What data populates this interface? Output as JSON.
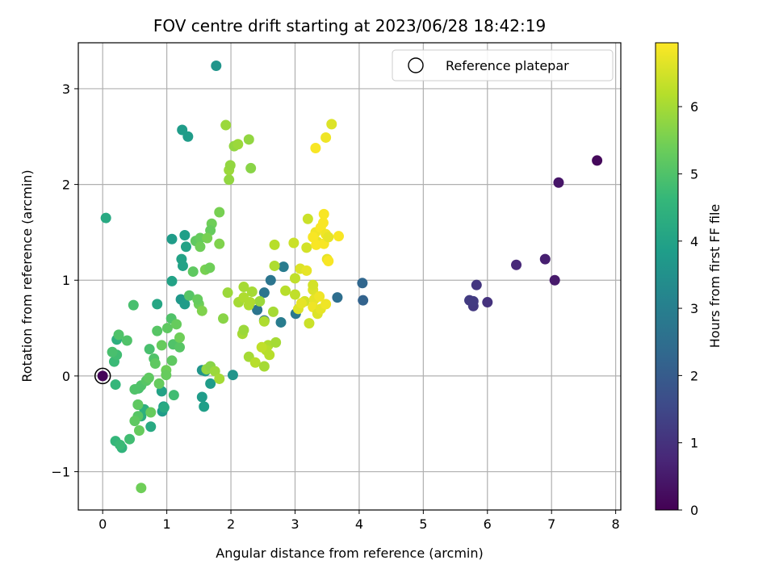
{
  "chart_data": {
    "type": "scatter",
    "title": "FOV centre drift starting at 2023/06/28 18:42:19",
    "xlabel": "Angular distance from reference (arcmin)",
    "ylabel": "Rotation from reference (arcmin)",
    "xlim": [
      -0.38,
      8.08
    ],
    "ylim": [
      -1.4,
      3.48
    ],
    "xticks": [
      0,
      1,
      2,
      3,
      4,
      5,
      6,
      7,
      8
    ],
    "yticks": [
      -1,
      0,
      1,
      2,
      3
    ],
    "xtick_labels": [
      "0",
      "1",
      "2",
      "3",
      "4",
      "5",
      "6",
      "7",
      "8"
    ],
    "ytick_labels": [
      "−1",
      "0",
      "1",
      "2",
      "3"
    ],
    "grid": true,
    "colormap": "viridis",
    "colorbar": {
      "label": "Hours from first FF file",
      "range": [
        0,
        6.95
      ],
      "ticks": [
        0,
        1,
        2,
        3,
        4,
        5,
        6
      ],
      "tick_labels": [
        "0",
        "1",
        "2",
        "3",
        "4",
        "5",
        "6"
      ]
    },
    "legend": {
      "entries": [
        "Reference platepar"
      ],
      "location": "upper right"
    },
    "reference_point": {
      "x": 0,
      "y": 0
    },
    "points": [
      [
        7.71,
        2.25,
        0.15
      ],
      [
        7.11,
        2.02,
        0.4
      ],
      [
        7.05,
        1.0,
        0.5
      ],
      [
        6.9,
        1.22,
        0.6
      ],
      [
        6.45,
        1.16,
        0.8
      ],
      [
        6.0,
        0.77,
        1.0
      ],
      [
        5.83,
        0.95,
        1.1
      ],
      [
        5.78,
        0.73,
        1.15
      ],
      [
        5.72,
        0.79,
        1.2
      ],
      [
        5.78,
        0.78,
        1.2
      ],
      [
        4.06,
        0.79,
        2.2
      ],
      [
        4.05,
        0.97,
        2.3
      ],
      [
        3.66,
        0.82,
        2.5
      ],
      [
        3.01,
        0.65,
        2.8
      ],
      [
        2.82,
        1.14,
        2.9
      ],
      [
        2.78,
        0.56,
        2.9
      ],
      [
        2.62,
        1.0,
        2.7
      ],
      [
        2.52,
        0.87,
        2.7
      ],
      [
        2.52,
        0.58,
        2.6
      ],
      [
        2.41,
        0.69,
        2.7
      ],
      [
        0,
        0,
        0.1
      ],
      [
        1.77,
        3.24,
        3.6
      ],
      [
        1.24,
        2.57,
        3.8
      ],
      [
        1.33,
        2.5,
        3.8
      ],
      [
        0.05,
        1.65,
        4.2
      ],
      [
        1.08,
        1.43,
        3.8
      ],
      [
        1.28,
        1.47,
        3.9
      ],
      [
        1.3,
        1.35,
        4.0
      ],
      [
        1.23,
        1.22,
        4.0
      ],
      [
        1.25,
        1.15,
        4.0
      ],
      [
        1.22,
        0.8,
        3.7
      ],
      [
        1.28,
        0.75,
        3.8
      ],
      [
        1.08,
        0.99,
        4.0
      ],
      [
        2.03,
        0.01,
        3.6
      ],
      [
        1.6,
        0.05,
        3.7
      ],
      [
        1.68,
        -0.08,
        3.8
      ],
      [
        1.55,
        0.06,
        3.6
      ],
      [
        1.55,
        -0.22,
        3.8
      ],
      [
        1.58,
        -0.32,
        3.9
      ],
      [
        0.85,
        0.75,
        4.1
      ],
      [
        0.93,
        -0.37,
        3.8
      ],
      [
        0.95,
        -0.32,
        3.9
      ],
      [
        0.92,
        -0.16,
        4.0
      ],
      [
        0.96,
        -0.33,
        4.2
      ],
      [
        0.55,
        -0.3,
        4.1
      ],
      [
        0.6,
        -0.42,
        4.3
      ],
      [
        0.75,
        -0.53,
        4.2
      ],
      [
        0.65,
        -0.35,
        4.4
      ],
      [
        0.22,
        0.38,
        4.4
      ],
      [
        0.3,
        -0.75,
        4.5
      ],
      [
        0.2,
        -0.68,
        4.6
      ],
      [
        0.27,
        -0.72,
        4.7
      ],
      [
        0.42,
        -0.66,
        4.8
      ],
      [
        0.2,
        -0.09,
        4.6
      ],
      [
        0.18,
        0.15,
        4.7
      ],
      [
        0.22,
        0.22,
        4.8
      ],
      [
        0.15,
        0.25,
        4.9
      ],
      [
        0.25,
        0.43,
        5.0
      ],
      [
        0.38,
        0.37,
        5.0
      ],
      [
        0.48,
        0.74,
        4.9
      ],
      [
        1.11,
        -0.2,
        4.8
      ],
      [
        1.1,
        0.33,
        5.0
      ],
      [
        1.2,
        0.3,
        5.1
      ],
      [
        1.07,
        0.6,
        5.0
      ],
      [
        1.01,
        0.5,
        5.2
      ],
      [
        0.85,
        0.47,
        5.1
      ],
      [
        0.73,
        0.28,
        4.9
      ],
      [
        0.8,
        0.18,
        5.0
      ],
      [
        0.82,
        0.13,
        5.2
      ],
      [
        0.92,
        0.32,
        5.3
      ],
      [
        0.99,
        0.06,
        5.4
      ],
      [
        0.99,
        0.01,
        5.3
      ],
      [
        1.08,
        0.16,
        5.2
      ],
      [
        0.56,
        -0.13,
        4.9
      ],
      [
        0.6,
        -0.1,
        5.0
      ],
      [
        0.55,
        -0.42,
        5.1
      ],
      [
        0.5,
        -0.47,
        5.2
      ],
      [
        0.57,
        -0.57,
        5.3
      ],
      [
        0.55,
        -0.3,
        5.2
      ],
      [
        0.68,
        -0.05,
        5.1
      ],
      [
        0.72,
        -0.02,
        5.2
      ],
      [
        0.75,
        -0.38,
        5.3
      ],
      [
        0.6,
        -1.17,
        5.4
      ],
      [
        0.5,
        -0.14,
        5.0
      ],
      [
        0.88,
        -0.08,
        5.3
      ],
      [
        1.2,
        0.4,
        5.4
      ],
      [
        1.15,
        0.54,
        5.3
      ],
      [
        1.35,
        0.84,
        5.1
      ],
      [
        1.5,
        0.75,
        5.4
      ],
      [
        1.48,
        0.8,
        5.3
      ],
      [
        1.41,
        1.09,
        5.2
      ],
      [
        1.45,
        1.41,
        5.2
      ],
      [
        1.52,
        1.44,
        5.3
      ],
      [
        1.52,
        1.35,
        5.4
      ],
      [
        1.6,
        1.11,
        5.5
      ],
      [
        1.67,
        1.13,
        5.4
      ],
      [
        1.82,
        1.38,
        5.6
      ],
      [
        1.82,
        1.71,
        5.5
      ],
      [
        1.7,
        1.59,
        5.4
      ],
      [
        1.68,
        1.52,
        5.3
      ],
      [
        1.63,
        1.44,
        5.5
      ],
      [
        1.55,
        0.68,
        5.6
      ],
      [
        1.62,
        0.07,
        5.8
      ],
      [
        1.68,
        0.1,
        5.7
      ],
      [
        1.75,
        0.05,
        5.9
      ],
      [
        1.82,
        -0.03,
        6.0
      ],
      [
        1.88,
        0.6,
        5.7
      ],
      [
        1.95,
        0.87,
        5.9
      ],
      [
        1.97,
        2.05,
        5.8
      ],
      [
        1.97,
        2.15,
        5.9
      ],
      [
        1.99,
        2.2,
        5.8
      ],
      [
        2.05,
        2.4,
        5.8
      ],
      [
        2.11,
        2.42,
        5.9
      ],
      [
        2.28,
        2.47,
        5.8
      ],
      [
        2.31,
        2.17,
        5.7
      ],
      [
        1.92,
        2.62,
        5.9
      ],
      [
        2.12,
        0.77,
        6.0
      ],
      [
        2.2,
        0.82,
        6.1
      ],
      [
        2.2,
        0.93,
        6.0
      ],
      [
        2.28,
        0.74,
        6.1
      ],
      [
        2.33,
        0.88,
        6.0
      ],
      [
        2.45,
        0.78,
        5.9
      ],
      [
        2.3,
        0.77,
        6.1
      ],
      [
        2.18,
        0.44,
        6.0
      ],
      [
        2.2,
        0.48,
        5.9
      ],
      [
        2.28,
        0.2,
        6.0
      ],
      [
        2.38,
        0.14,
        6.2
      ],
      [
        2.58,
        0.32,
        6.1
      ],
      [
        2.7,
        0.35,
        6.0
      ],
      [
        2.6,
        0.22,
        6.2
      ],
      [
        2.66,
        0.67,
        6.0
      ],
      [
        2.68,
        1.15,
        6.1
      ],
      [
        2.68,
        1.37,
        6.2
      ],
      [
        2.85,
        0.89,
        6.2
      ],
      [
        3.0,
        0.85,
        6.3
      ],
      [
        2.98,
        1.39,
        6.4
      ],
      [
        3.0,
        1.02,
        6.3
      ],
      [
        3.08,
        1.12,
        6.6
      ],
      [
        3.18,
        1.34,
        6.5
      ],
      [
        3.2,
        1.64,
        6.4
      ],
      [
        3.18,
        1.1,
        6.7
      ],
      [
        3.15,
        0.78,
        6.5
      ],
      [
        3.22,
        0.55,
        6.4
      ],
      [
        3.05,
        0.7,
        6.6
      ],
      [
        3.1,
        0.76,
        6.7
      ],
      [
        3.28,
        0.9,
        6.6
      ],
      [
        3.3,
        0.8,
        6.7
      ],
      [
        3.28,
        0.95,
        6.5
      ],
      [
        3.28,
        0.72,
        6.8
      ],
      [
        3.35,
        0.65,
        6.6
      ],
      [
        3.4,
        0.7,
        6.7
      ],
      [
        3.38,
        0.83,
        6.8
      ],
      [
        3.48,
        0.75,
        6.8
      ],
      [
        3.35,
        1.4,
        6.7
      ],
      [
        3.32,
        1.5,
        6.8
      ],
      [
        3.28,
        1.45,
        6.9
      ],
      [
        3.4,
        1.55,
        6.9
      ],
      [
        3.45,
        1.38,
        6.9
      ],
      [
        3.44,
        1.6,
        6.9
      ],
      [
        3.45,
        1.69,
        6.9
      ],
      [
        3.48,
        1.48,
        6.8
      ],
      [
        3.52,
        1.45,
        6.7
      ],
      [
        3.5,
        1.22,
        6.7
      ],
      [
        3.52,
        1.2,
        6.9
      ],
      [
        3.68,
        1.46,
        6.9
      ],
      [
        3.32,
        2.38,
        6.9
      ],
      [
        3.48,
        2.49,
        6.8
      ],
      [
        3.57,
        2.63,
        6.6
      ],
      [
        3.33,
        1.37,
        6.9
      ],
      [
        2.52,
        0.57,
        6.1
      ],
      [
        2.55,
        0.27,
        6.2
      ],
      [
        2.48,
        0.3,
        6.3
      ],
      [
        2.52,
        0.1,
        6.0
      ]
    ]
  }
}
